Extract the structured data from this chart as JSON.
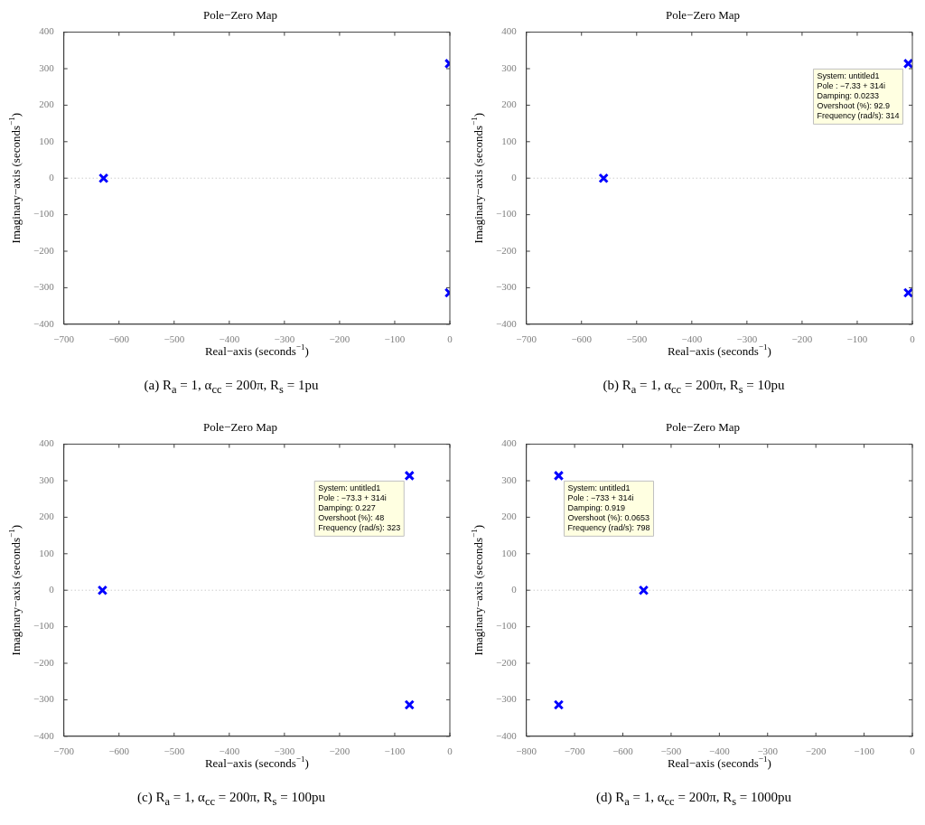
{
  "chart_data": [
    {
      "type": "scatter",
      "title": "Pole−Zero Map",
      "xlabel": "Real−axis (seconds$^{−1}$)",
      "ylabel": "Imaginary−axis (seconds$^{−1}$)",
      "x": [
        -628,
        -0.733,
        -0.733
      ],
      "values": [
        0,
        314,
        -314
      ],
      "color": "#0000ff",
      "marker": "cross",
      "grid": false,
      "legend": false,
      "xlim": [
        -700,
        0
      ],
      "xticks": [
        -700,
        -600,
        -500,
        -400,
        -300,
        -200,
        -100,
        0
      ],
      "ylim": [
        -400,
        400
      ],
      "yticks": [
        -400,
        -300,
        -200,
        -100,
        0,
        100,
        200,
        300,
        400
      ],
      "ref_lines": [
        {
          "axis": "y",
          "value": 0,
          "line_style": "dotted",
          "color": "#b4b4b4"
        }
      ],
      "annotations": [
        "(a)  R$_{a}$ = 1, α$_{cc}$ = 200π, R$_{s}$ = 1pu"
      ]
    },
    {
      "type": "scatter",
      "title": "Pole−Zero Map",
      "xlabel": "Real−axis (seconds$^{−1}$)",
      "ylabel": "Imaginary−axis (seconds$^{−1}$)",
      "x": [
        -560,
        -7.33,
        -7.33
      ],
      "values": [
        0,
        314,
        -314
      ],
      "color": "#0000ff",
      "marker": "cross",
      "grid": false,
      "legend": false,
      "xlim": [
        -700,
        0
      ],
      "xticks": [
        -700,
        -600,
        -500,
        -400,
        -300,
        -200,
        -100,
        0
      ],
      "ylim": [
        -400,
        400
      ],
      "yticks": [
        -400,
        -300,
        -200,
        -100,
        0,
        100,
        200,
        300,
        400
      ],
      "ref_lines": [
        {
          "axis": "y",
          "value": 0,
          "line_style": "dotted",
          "color": "#b4b4b4"
        }
      ],
      "annotations": [
        {
          "text": "System: untitled1\nPole : −7.33 + 314i\nDamping: 0.0233\nOvershoot (%): 92.9\nFrequency (rad/s): 314",
          "x": -7.33,
          "y": 314
        },
        "(b)  R$_{a}$ = 1, α$_{cc}$ = 200π, R$_{s}$ = 10pu"
      ]
    },
    {
      "type": "scatter",
      "title": "Pole−Zero Map",
      "xlabel": "Real−axis (seconds$^{−1}$)",
      "ylabel": "Imaginary−axis (seconds$^{−1}$)",
      "x": [
        -630,
        -73.3,
        -73.3
      ],
      "values": [
        0,
        314,
        -314
      ],
      "color": "#0000ff",
      "marker": "cross",
      "grid": false,
      "legend": false,
      "xlim": [
        -700,
        0
      ],
      "xticks": [
        -700,
        -600,
        -500,
        -400,
        -300,
        -200,
        -100,
        0
      ],
      "ylim": [
        -400,
        400
      ],
      "yticks": [
        -400,
        -300,
        -200,
        -100,
        0,
        100,
        200,
        300,
        400
      ],
      "ref_lines": [
        {
          "axis": "y",
          "value": 0,
          "line_style": "dotted",
          "color": "#b4b4b4"
        }
      ],
      "annotations": [
        {
          "text": "System: untitled1\nPole : −73.3 + 314i\nDamping: 0.227\nOvershoot (%): 48\nFrequency (rad/s): 323",
          "x": -73.3,
          "y": 314
        },
        "(c)  R$_{a}$ = 1, α$_{cc}$ = 200π, R$_{s}$ = 100pu"
      ]
    },
    {
      "type": "scatter",
      "title": "Pole−Zero Map",
      "xlabel": "Real−axis (seconds$^{−1}$)",
      "ylabel": "Imaginary−axis (seconds$^{−1}$)",
      "x": [
        -557,
        -733,
        -733
      ],
      "values": [
        0,
        314,
        -314
      ],
      "color": "#0000ff",
      "marker": "cross",
      "grid": false,
      "legend": false,
      "xlim": [
        -800,
        0
      ],
      "xticks": [
        -800,
        -700,
        -600,
        -500,
        -400,
        -300,
        -200,
        -100,
        0
      ],
      "ylim": [
        -400,
        400
      ],
      "yticks": [
        -400,
        -300,
        -200,
        -100,
        0,
        100,
        200,
        300,
        400
      ],
      "ref_lines": [
        {
          "axis": "y",
          "value": 0,
          "line_style": "dotted",
          "color": "#b4b4b4"
        }
      ],
      "annotations": [
        {
          "text": "System: untitled1\nPole : −733 + 314i\nDamping: 0.919\nOvershoot (%): 0.0653\nFrequency (rad/s): 798",
          "x": -733,
          "y": 314
        },
        "(d)  R$_{a}$ = 1, α$_{cc}$ = 200π, R$_{s}$ = 1000pu"
      ]
    }
  ]
}
